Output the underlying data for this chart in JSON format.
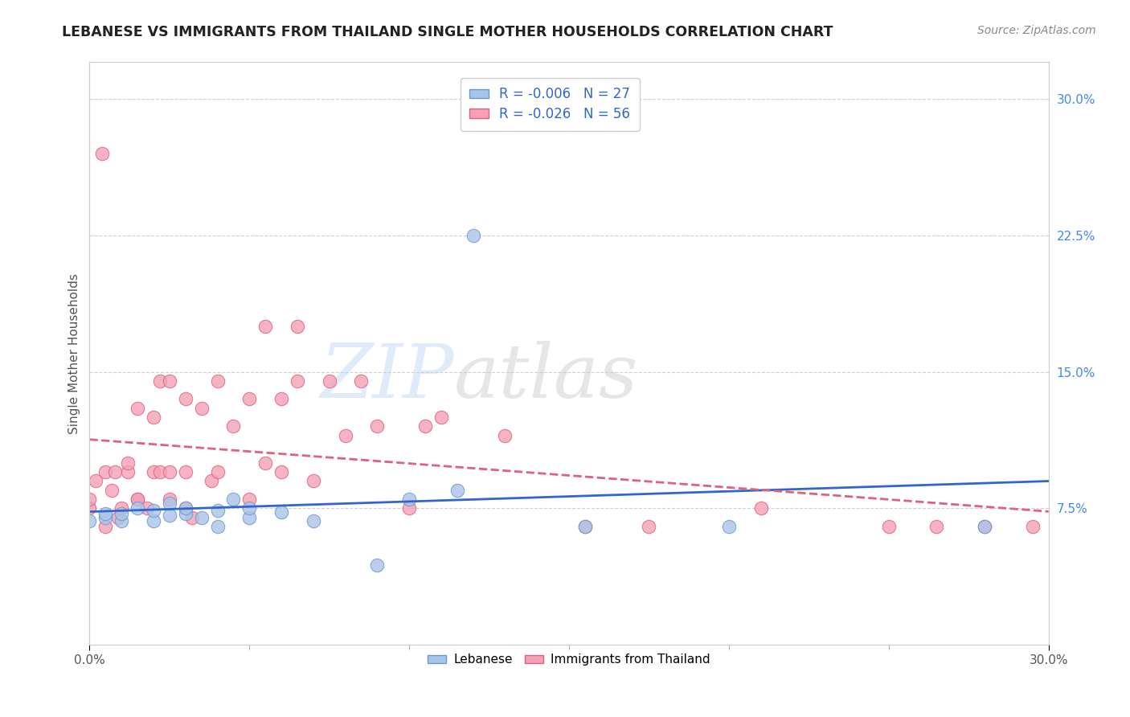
{
  "title": "LEBANESE VS IMMIGRANTS FROM THAILAND SINGLE MOTHER HOUSEHOLDS CORRELATION CHART",
  "source_text": "Source: ZipAtlas.com",
  "ylabel": "Single Mother Households",
  "xlim": [
    0.0,
    0.3
  ],
  "ylim": [
    0.0,
    0.32
  ],
  "xtick_positions": [
    0.0,
    0.3
  ],
  "xtick_labels": [
    "0.0%",
    "30.0%"
  ],
  "ytick_right_labels": [
    "7.5%",
    "15.0%",
    "22.5%",
    "30.0%"
  ],
  "ytick_right_values": [
    0.075,
    0.15,
    0.225,
    0.3
  ],
  "background_color": "#ffffff",
  "grid_color": "#cccccc",
  "watermark_zip": "ZIP",
  "watermark_atlas": "atlas",
  "legend_color": "#3366cc",
  "legend_r1": "R = -0.006",
  "legend_n1": "N = 27",
  "legend_r2": "R = -0.026",
  "legend_n2": "N = 56",
  "color_lebanese_fill": "#aac4e8",
  "color_lebanese_edge": "#6699cc",
  "color_thailand_fill": "#f4a0b5",
  "color_thailand_edge": "#e06080",
  "line_color_lebanese": "#3366cc",
  "line_color_thailand": "#e06080",
  "lebanese_x": [
    0.0,
    0.005,
    0.005,
    0.01,
    0.01,
    0.015,
    0.02,
    0.02,
    0.025,
    0.025,
    0.03,
    0.03,
    0.035,
    0.04,
    0.04,
    0.045,
    0.05,
    0.05,
    0.06,
    0.07,
    0.09,
    0.1,
    0.115,
    0.12,
    0.155,
    0.2,
    0.28
  ],
  "lebanese_y": [
    0.068,
    0.07,
    0.072,
    0.068,
    0.072,
    0.075,
    0.068,
    0.074,
    0.071,
    0.078,
    0.072,
    0.075,
    0.07,
    0.065,
    0.074,
    0.08,
    0.07,
    0.075,
    0.073,
    0.068,
    0.044,
    0.08,
    0.085,
    0.225,
    0.065,
    0.065,
    0.065
  ],
  "thailand_x": [
    0.0,
    0.0,
    0.002,
    0.004,
    0.005,
    0.005,
    0.007,
    0.008,
    0.009,
    0.01,
    0.012,
    0.012,
    0.015,
    0.015,
    0.015,
    0.018,
    0.02,
    0.02,
    0.022,
    0.022,
    0.025,
    0.025,
    0.025,
    0.03,
    0.03,
    0.03,
    0.032,
    0.035,
    0.038,
    0.04,
    0.04,
    0.045,
    0.05,
    0.05,
    0.055,
    0.055,
    0.06,
    0.06,
    0.065,
    0.065,
    0.07,
    0.075,
    0.08,
    0.085,
    0.09,
    0.1,
    0.105,
    0.11,
    0.13,
    0.155,
    0.175,
    0.21,
    0.25,
    0.265,
    0.28,
    0.295
  ],
  "thailand_y": [
    0.075,
    0.08,
    0.09,
    0.27,
    0.065,
    0.095,
    0.085,
    0.095,
    0.07,
    0.075,
    0.095,
    0.1,
    0.08,
    0.08,
    0.13,
    0.075,
    0.095,
    0.125,
    0.095,
    0.145,
    0.08,
    0.095,
    0.145,
    0.075,
    0.095,
    0.135,
    0.07,
    0.13,
    0.09,
    0.095,
    0.145,
    0.12,
    0.08,
    0.135,
    0.1,
    0.175,
    0.095,
    0.135,
    0.145,
    0.175,
    0.09,
    0.145,
    0.115,
    0.145,
    0.12,
    0.075,
    0.12,
    0.125,
    0.115,
    0.065,
    0.065,
    0.075,
    0.065,
    0.065,
    0.065,
    0.065
  ]
}
